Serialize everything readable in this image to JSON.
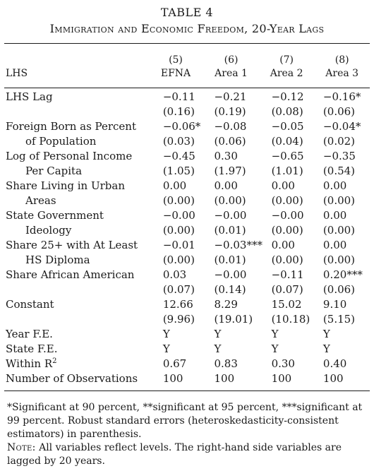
{
  "table": {
    "number": "TABLE 4",
    "title": "Immigration and Economic Freedom, 20-Year Lags",
    "columns": [
      {
        "num": "(5)",
        "name": "EFNA"
      },
      {
        "num": "(6)",
        "name": "Area 1"
      },
      {
        "num": "(7)",
        "name": "Area 2"
      },
      {
        "num": "(8)",
        "name": "Area 3"
      }
    ],
    "lhs_label": "LHS",
    "rows": [
      {
        "label": "LHS Lag",
        "label2": "",
        "coef": [
          "−0.11",
          "−0.21",
          "−0.12",
          "−0.16*"
        ],
        "se": [
          "(0.16)",
          "(0.19)",
          "(0.08)",
          "(0.06)"
        ]
      },
      {
        "label": "Foreign Born as Percent",
        "label2": "of Population",
        "coef": [
          "−0.06*",
          "−0.08",
          "−0.05",
          "−0.04*"
        ],
        "se": [
          "(0.03)",
          "(0.06)",
          "(0.04)",
          "(0.02)"
        ]
      },
      {
        "label": "Log of Personal Income",
        "label2": "Per Capita",
        "coef": [
          "−0.45",
          "0.30",
          "−0.65",
          "−0.35"
        ],
        "se": [
          "(1.05)",
          "(1.97)",
          "(1.01)",
          "(0.54)"
        ]
      },
      {
        "label": "Share Living in Urban",
        "label2": "Areas",
        "coef": [
          "0.00",
          "0.00",
          "0.00",
          "0.00"
        ],
        "se": [
          "(0.00)",
          "(0.00)",
          "(0.00)",
          "(0.00)"
        ]
      },
      {
        "label": "State Government",
        "label2": "Ideology",
        "coef": [
          "−0.00",
          "−0.00",
          "−0.00",
          "0.00"
        ],
        "se": [
          "(0.00)",
          "(0.01)",
          "(0.00)",
          "(0.00)"
        ]
      },
      {
        "label": "Share 25+ with At Least",
        "label2": "HS Diploma",
        "coef": [
          "−0.01",
          "−0.03***",
          "0.00",
          "0.00"
        ],
        "se": [
          "(0.00)",
          "(0.01)",
          "(0.00)",
          "(0.00)"
        ]
      },
      {
        "label": "Share African American",
        "label2": "",
        "coef": [
          "0.03",
          "−0.00",
          "−0.11",
          "0.20***"
        ],
        "se": [
          "(0.07)",
          "(0.14)",
          "(0.07)",
          "(0.06)"
        ]
      },
      {
        "label": "Constant",
        "label2": "",
        "coef": [
          "12.66",
          "8.29",
          "15.02",
          "9.10"
        ],
        "se": [
          "(9.96)",
          "(19.01)",
          "(10.18)",
          "(5.15)"
        ]
      }
    ],
    "footer_rows": [
      {
        "label": "Year F.E.",
        "vals": [
          "Y",
          "Y",
          "Y",
          "Y"
        ]
      },
      {
        "label": "State F.E.",
        "vals": [
          "Y",
          "Y",
          "Y",
          "Y"
        ]
      },
      {
        "label": "Within R",
        "sup": "2",
        "vals": [
          "0.67",
          "0.83",
          "0.30",
          "0.40"
        ]
      },
      {
        "label": "Number of Observations",
        "vals": [
          "100",
          "100",
          "100",
          "100"
        ]
      }
    ],
    "significance_note": "*Significant at 90 percent, **significant at 95 percent, ***significant at 99 percent. Robust standard errors (heteroskedasticity-consistent estimators) in parenthesis.",
    "note_label": "Note:",
    "note_text": " All variables reflect levels. The right-hand side variables are lagged by 20 years."
  }
}
